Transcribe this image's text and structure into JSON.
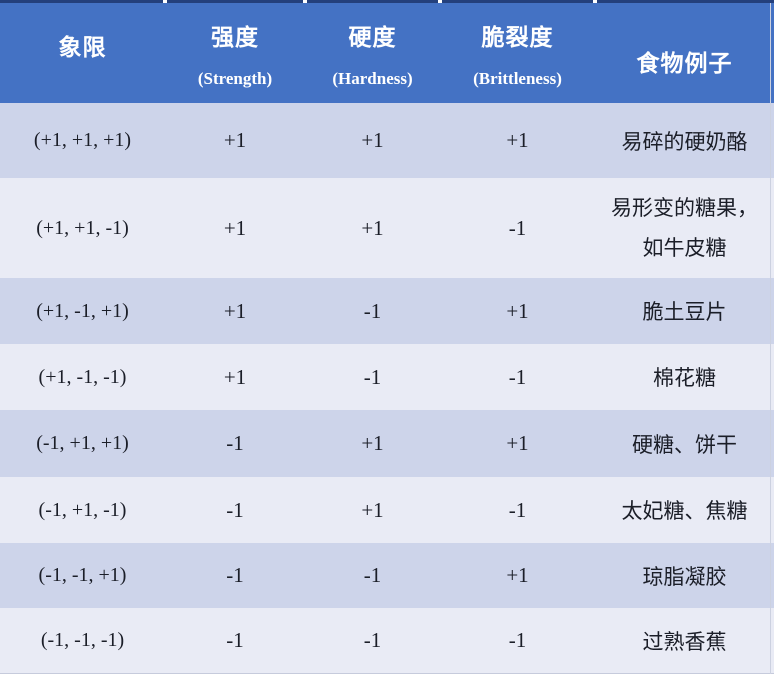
{
  "table": {
    "header": {
      "quadrant_cn": "象限",
      "strength_cn": "强度",
      "strength_en": "(Strength)",
      "hardness_cn": "硬度",
      "hardness_en": "(Hardness)",
      "brittleness_cn": "脆裂度",
      "brittleness_en": "(Brittleness)",
      "example_cn": "食物例子"
    },
    "rows": [
      {
        "quadrant": "(+1, +1, +1)",
        "strength": "+1",
        "hardness": "+1",
        "brittleness": "+1",
        "example": "易碎的硬奶酪"
      },
      {
        "quadrant": "(+1, +1, -1)",
        "strength": "+1",
        "hardness": "+1",
        "brittleness": "-1",
        "example_lines": [
          "易形变的糖果，",
          "如牛皮糖"
        ]
      },
      {
        "quadrant": "(+1, -1, +1)",
        "strength": "+1",
        "hardness": "-1",
        "brittleness": "+1",
        "example": "脆土豆片"
      },
      {
        "quadrant": "(+1, -1, -1)",
        "strength": "+1",
        "hardness": "-1",
        "brittleness": "-1",
        "example": "棉花糖"
      },
      {
        "quadrant": "(-1, +1, +1)",
        "strength": "-1",
        "hardness": "+1",
        "brittleness": "+1",
        "example": "硬糖、饼干"
      },
      {
        "quadrant": "(-1, +1, -1)",
        "strength": "-1",
        "hardness": "+1",
        "brittleness": "-1",
        "example": "太妃糖、焦糖"
      },
      {
        "quadrant": "(-1, -1, +1)",
        "strength": "-1",
        "hardness": "-1",
        "brittleness": "+1",
        "example": "琼脂凝胶"
      },
      {
        "quadrant": "(-1, -1, -1)",
        "strength": "-1",
        "hardness": "-1",
        "brittleness": "-1",
        "example": "过熟香蕉"
      }
    ],
    "colors": {
      "header_bg": "#4472C4",
      "header_text": "#FFFFFF",
      "row_shade_dark": "#CDD4EA",
      "row_shade_light": "#E9EBF5",
      "top_rule": "#24407C",
      "body_text": "#1B1E28",
      "hairline": "#C6CBDC"
    }
  }
}
